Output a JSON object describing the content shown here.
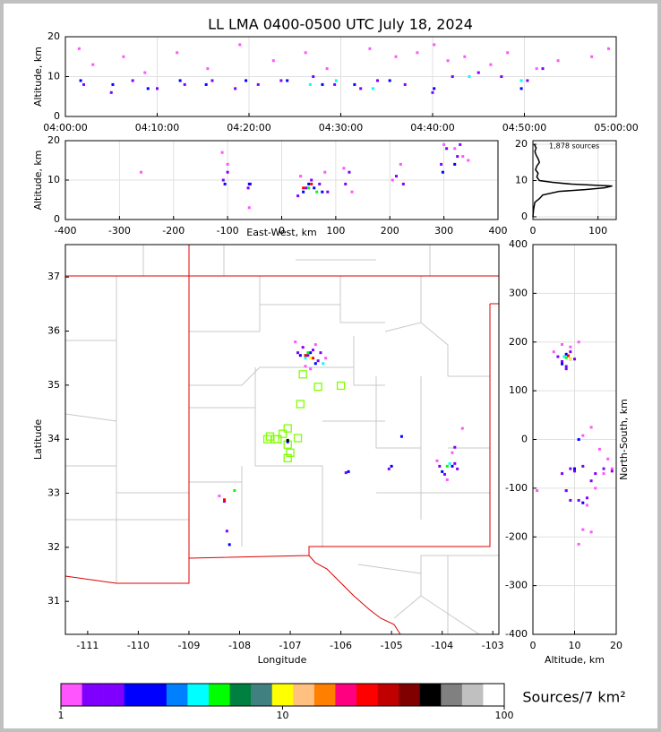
{
  "chart_data": [
    {
      "type": "scatter",
      "title": "LL LMA 0400-0500 UTC July 18, 2024",
      "y_label": "Altitude, km",
      "xlim": [
        "04:00:00",
        "05:00:00"
      ],
      "xticks": [
        "04:00:00",
        "04:10:00",
        "04:20:00",
        "04:30:00",
        "04:40:00",
        "04:50:00",
        "05:00:00"
      ],
      "ylim": [
        0,
        20
      ],
      "yticks": [
        0,
        10,
        20
      ],
      "grid": true,
      "series": [
        {
          "color": "#ff55ff",
          "x": [
            "04:01:30",
            "04:03:00",
            "04:06:20",
            "04:08:40",
            "04:12:10",
            "04:15:30",
            "04:19:00",
            "04:22:40",
            "04:26:10",
            "04:28:30",
            "04:33:10",
            "04:36:00",
            "04:38:20",
            "04:40:10",
            "04:41:40",
            "04:43:30",
            "04:46:20",
            "04:48:10",
            "04:51:20",
            "04:53:40",
            "04:57:20",
            "04:59:10"
          ],
          "y": [
            17,
            13,
            15,
            11,
            16,
            12,
            18,
            14,
            16,
            12,
            17,
            15,
            16,
            18,
            14,
            15,
            13,
            16,
            12,
            14,
            15,
            17
          ]
        },
        {
          "color": "#8000ff",
          "x": [
            "04:02:00",
            "04:05:00",
            "04:07:20",
            "04:10:00",
            "04:13:00",
            "04:16:00",
            "04:18:30",
            "04:21:00",
            "04:23:30",
            "04:27:00",
            "04:29:20",
            "04:32:10",
            "04:34:00",
            "04:37:00",
            "04:40:00",
            "04:42:10",
            "04:45:00",
            "04:47:30",
            "04:50:20",
            "04:52:00"
          ],
          "y": [
            8,
            6,
            9,
            7,
            8,
            9,
            7,
            8,
            9,
            10,
            8,
            7,
            9,
            8,
            6,
            10,
            11,
            10,
            9,
            12
          ]
        },
        {
          "color": "#0000ff",
          "x": [
            "04:01:40",
            "04:05:10",
            "04:09:00",
            "04:12:30",
            "04:15:20",
            "04:19:40",
            "04:24:10",
            "04:28:00",
            "04:31:30",
            "04:35:20",
            "04:40:10",
            "04:49:40"
          ],
          "y": [
            9,
            8,
            7,
            9,
            8,
            9,
            9,
            8,
            8,
            9,
            7,
            7
          ]
        },
        {
          "color": "#00ffff",
          "x": [
            "04:26:40",
            "04:29:30",
            "04:33:30",
            "04:44:00",
            "04:49:40"
          ],
          "y": [
            8,
            9,
            7,
            10,
            9
          ]
        }
      ]
    },
    {
      "type": "scatter",
      "x_label": "East-West, km",
      "y_label": "Altitude, km",
      "xlim": [
        -400,
        400
      ],
      "xticks": [
        -400,
        -300,
        -200,
        -100,
        0,
        100,
        200,
        300,
        400
      ],
      "ylim": [
        0,
        20
      ],
      "yticks": [
        0,
        10,
        20
      ],
      "grid": true,
      "series": [
        {
          "color": "#ff55ff",
          "x": [
            -260,
            -110,
            -100,
            -60,
            35,
            80,
            115,
            130,
            205,
            220,
            300,
            320,
            335,
            345
          ],
          "y": [
            12,
            17,
            14,
            3,
            11,
            12,
            13,
            7,
            10,
            14,
            19,
            18,
            16,
            15
          ]
        },
        {
          "color": "#8000ff",
          "x": [
            -108,
            -100,
            -62,
            -58,
            30,
            45,
            55,
            70,
            85,
            118,
            125,
            212,
            225,
            295,
            305,
            325,
            330
          ],
          "y": [
            10,
            12,
            8,
            9,
            6,
            8,
            10,
            9,
            7,
            9,
            12,
            11,
            9,
            14,
            18,
            16,
            19
          ]
        },
        {
          "color": "#0000ff",
          "x": [
            -105,
            -60,
            40,
            50,
            60,
            75,
            298,
            320
          ],
          "y": [
            9,
            9,
            7,
            9,
            8,
            7,
            12,
            14
          ]
        },
        {
          "color": "#00ff00",
          "x": [
            50,
            65
          ],
          "y": [
            8,
            7
          ]
        },
        {
          "color": "#ff0000",
          "x": [
            40,
            55
          ],
          "y": [
            8,
            9
          ]
        }
      ]
    },
    {
      "type": "line",
      "annotation": "1,878 sources",
      "color": "#000000",
      "xlim": [
        0,
        128
      ],
      "xticks": [
        0,
        100
      ],
      "ylim": [
        -0.75,
        21
      ],
      "yticks": [
        0,
        10,
        20
      ],
      "grid": true,
      "x": [
        0,
        1,
        3,
        10,
        15,
        40,
        80,
        110,
        122,
        60,
        30,
        10,
        6,
        8,
        4,
        6,
        10,
        8,
        5,
        3,
        5,
        2
      ],
      "y": [
        0,
        2,
        4,
        5,
        6,
        7,
        7.5,
        8,
        8.5,
        9,
        9.5,
        10,
        11,
        12,
        13,
        14,
        15,
        16,
        17,
        18,
        19,
        20
      ]
    },
    {
      "type": "scatter",
      "x_label": "Longitude",
      "y_label": "Latitude",
      "xlim": [
        -111.44,
        -102.88
      ],
      "xticks": [
        -111,
        -110,
        -109,
        -108,
        -107,
        -106,
        -105,
        -104,
        -103
      ],
      "ylim": [
        30.39,
        37.6
      ],
      "yticks": [
        31,
        32,
        33,
        34,
        35,
        36,
        37
      ],
      "grid": false,
      "series": [
        {
          "color": "#80ff00",
          "marker": "open-square",
          "x": [
            -106.75,
            -106.45,
            -106.0,
            -106.8,
            -107.05,
            -107.15,
            -107.3,
            -107.4,
            -107.45,
            -107.25,
            -106.85,
            -107.05,
            -107.0,
            -107.05
          ],
          "y": [
            35.2,
            34.97,
            34.99,
            34.65,
            34.2,
            34.1,
            34.0,
            34.05,
            34.0,
            34.0,
            34.02,
            33.9,
            33.75,
            33.65
          ]
        },
        {
          "color": "#ff55ff",
          "x": [
            -106.9,
            -106.7,
            -106.5,
            -106.3,
            -104.1,
            -103.8,
            -103.6,
            -108.4,
            -106.6,
            -103.9
          ],
          "y": [
            35.8,
            35.35,
            35.75,
            35.5,
            33.6,
            33.75,
            34.2,
            32.95,
            35.3,
            33.25
          ]
        },
        {
          "color": "#8000ff",
          "x": [
            -106.85,
            -106.75,
            -106.65,
            -106.55,
            -106.45,
            -106.4,
            -104.05,
            -103.95,
            -103.75,
            -103.7,
            -105.9,
            -105.05,
            -108.3,
            -103.75,
            -108.25
          ],
          "y": [
            35.6,
            35.7,
            35.55,
            35.65,
            35.45,
            35.6,
            33.5,
            33.35,
            33.55,
            33.45,
            33.38,
            33.45,
            32.85,
            33.85,
            32.3
          ]
        },
        {
          "color": "#0000ff",
          "x": [
            -106.8,
            -106.6,
            -106.5,
            -104.8,
            -105.85,
            -104.0,
            -103.8,
            -108.2,
            -107.05,
            -105.0
          ],
          "y": [
            35.55,
            35.6,
            35.4,
            34.05,
            33.4,
            33.4,
            33.5,
            32.05,
            33.95,
            33.5
          ]
        },
        {
          "color": "#00ffff",
          "x": [
            -106.7,
            -106.35,
            -103.85
          ],
          "y": [
            35.5,
            35.4,
            33.55
          ]
        },
        {
          "color": "#00ff00",
          "x": [
            -106.65,
            -108.1,
            -103.9
          ],
          "y": [
            35.6,
            33.05,
            33.5
          ]
        },
        {
          "color": "#ff0000",
          "x": [
            -106.7,
            -108.3,
            -106.55
          ],
          "y": [
            35.55,
            32.88,
            35.5
          ]
        },
        {
          "color": "#ffff00",
          "x": [
            -106.6
          ],
          "y": [
            35.5
          ]
        },
        {
          "color": "#000000",
          "x": [
            -107.05
          ],
          "y": [
            33.98
          ]
        }
      ]
    },
    {
      "type": "scatter",
      "x_label": "Altitude, km",
      "y_label": "North-South, km",
      "xlim": [
        0,
        20
      ],
      "xticks": [
        0,
        10,
        20
      ],
      "ylim": [
        -400,
        400
      ],
      "yticks": [
        -400,
        -300,
        -200,
        -100,
        0,
        100,
        200,
        300,
        400
      ],
      "grid": true,
      "series": [
        {
          "color": "#ff55ff",
          "x": [
            5,
            7,
            9,
            11,
            12,
            14,
            16,
            18,
            19,
            15,
            13,
            1,
            12,
            14,
            8,
            11,
            17
          ],
          "y": [
            180,
            195,
            190,
            200,
            8,
            25,
            -20,
            -40,
            -60,
            -100,
            -135,
            -105,
            -185,
            -190,
            -105,
            -215,
            -70
          ]
        },
        {
          "color": "#8000ff",
          "x": [
            6,
            7,
            8,
            9,
            10,
            8,
            7,
            9,
            10,
            12,
            15,
            17,
            19,
            14,
            8,
            9,
            11,
            13
          ],
          "y": [
            170,
            160,
            150,
            180,
            165,
            145,
            -70,
            -60,
            -65,
            -55,
            -70,
            -60,
            -65,
            -85,
            -105,
            -125,
            -125,
            -120
          ]
        },
        {
          "color": "#0000ff",
          "x": [
            8,
            9,
            7,
            10,
            11,
            12
          ],
          "y": [
            175,
            165,
            155,
            -60,
            0,
            -130
          ]
        },
        {
          "color": "#00ffff",
          "x": [
            7.5
          ],
          "y": [
            170
          ]
        },
        {
          "color": "#00ff00",
          "x": [
            8
          ],
          "y": [
            168
          ]
        },
        {
          "color": "#ff0000",
          "x": [
            8.5
          ],
          "y": [
            172
          ]
        },
        {
          "color": "#ffff00",
          "x": [
            9
          ],
          "y": [
            165
          ]
        }
      ]
    },
    {
      "type": "colorbar",
      "label": "Sources/7 km²",
      "log": true,
      "xlim": [
        1,
        100
      ],
      "xticks": [
        1,
        10,
        100
      ],
      "colors": [
        "#ff55ff",
        "#8000ff",
        "#8000ff",
        "#0000ff",
        "#0000ff",
        "#0080ff",
        "#00ffff",
        "#00ff00",
        "#008040",
        "#408080",
        "#ffff00",
        "#ffc080",
        "#ff8000",
        "#ff0080",
        "#ff0000",
        "#c00000",
        "#800000",
        "#000000",
        "#808080",
        "#c0c0c0",
        "#ffffff"
      ]
    }
  ]
}
